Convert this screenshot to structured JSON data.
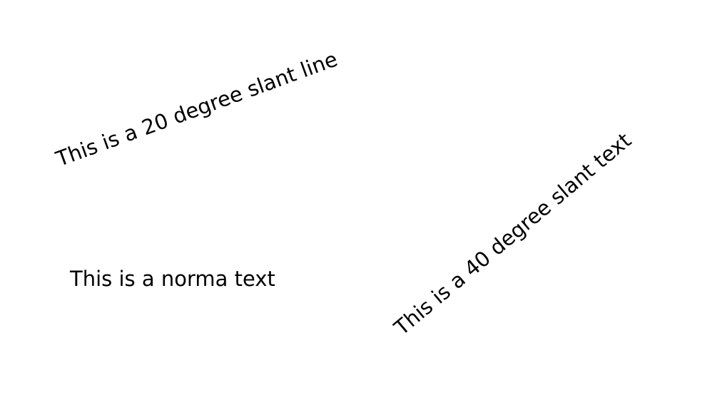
{
  "texts": {
    "slant_20": "This is a 20 degree slant line",
    "normal": "This is a norma text",
    "slant_40": "This is a 40 degree slant text"
  }
}
